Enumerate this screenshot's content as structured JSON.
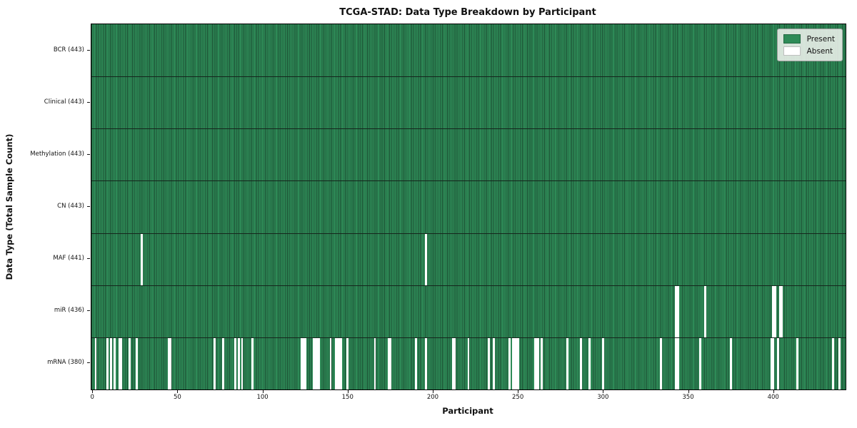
{
  "chart_data": {
    "type": "heatmap",
    "title": "TCGA-STAD: Data Type Breakdown by Participant",
    "xlabel": "Participant",
    "ylabel": "Data Type (Total Sample Count)",
    "n_participants": 443,
    "x_ticks": [
      0,
      50,
      100,
      150,
      200,
      250,
      300,
      350,
      400
    ],
    "legend": {
      "present_label": "Present",
      "absent_label": "Absent",
      "position": "upper right"
    },
    "colors": {
      "present": "#2e8b57",
      "absent": "#ffffff",
      "bar_edge": "#1c4e33",
      "row_divider": "#15251c",
      "legend_bg": "#e9eee9",
      "legend_border": "#9e9e9e"
    },
    "rows": [
      {
        "name": "BCR",
        "label": "BCR (443)",
        "total": 443,
        "absent": []
      },
      {
        "name": "Clinical",
        "label": "Clinical (443)",
        "total": 443,
        "absent": []
      },
      {
        "name": "Methylation",
        "label": "Methylation (443)",
        "total": 443,
        "absent": []
      },
      {
        "name": "CN",
        "label": "CN (443)",
        "total": 443,
        "absent": []
      },
      {
        "name": "MAF",
        "label": "MAF (441)",
        "total": 441,
        "absent": [
          29,
          196
        ]
      },
      {
        "name": "miR",
        "label": "miR (436)",
        "total": 436,
        "absent": [
          343,
          344,
          360,
          400,
          401,
          404,
          405
        ]
      },
      {
        "name": "mRNA",
        "label": "mRNA (380)",
        "total": 380,
        "absent": [
          2,
          9,
          11,
          13,
          16,
          17,
          22,
          26,
          45,
          46,
          72,
          77,
          84,
          86,
          88,
          94,
          123,
          124,
          125,
          130,
          131,
          132,
          133,
          140,
          143,
          144,
          145,
          146,
          150,
          166,
          174,
          175,
          190,
          196,
          212,
          213,
          221,
          233,
          236,
          245,
          247,
          248,
          249,
          250,
          260,
          261,
          262,
          264,
          279,
          287,
          292,
          300,
          334,
          343,
          344,
          357,
          375,
          399,
          400,
          403,
          414,
          435,
          439
        ]
      }
    ]
  }
}
